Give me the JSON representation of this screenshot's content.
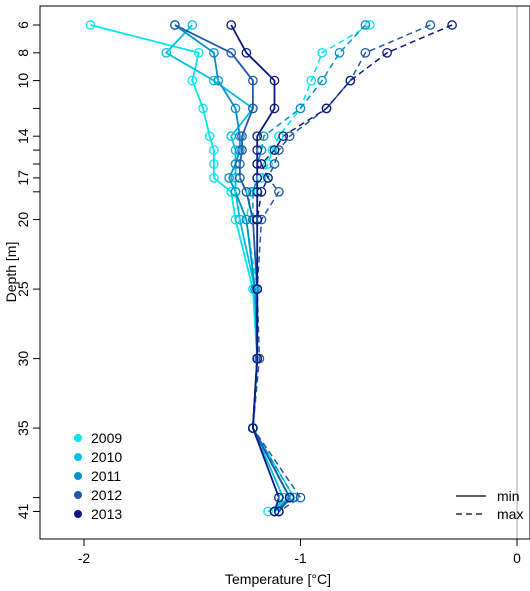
{
  "chart_data": {
    "type": "line",
    "title": "",
    "xlabel": "Temperature [°C]",
    "ylabel": "Depth [m]",
    "xlim": [
      -2.0,
      0.0
    ],
    "ylim": [
      42.5,
      5.3
    ],
    "x_ticks": [
      -2,
      -1,
      0
    ],
    "x_tick_labels": [
      "-2",
      "-1",
      "0"
    ],
    "y_ticks": [
      6,
      8,
      10,
      12,
      14,
      15,
      16,
      17,
      18,
      20,
      25,
      30,
      35,
      40,
      41
    ],
    "y_tick_labels": [
      "6",
      "8",
      "10",
      "",
      "14",
      "",
      "",
      "17",
      "",
      "20",
      "25",
      "30",
      "35",
      "",
      "41"
    ],
    "grid": false,
    "reference_line_x": 0,
    "depths": [
      6,
      8,
      10,
      12,
      14,
      15,
      16,
      17,
      18,
      20,
      25,
      30,
      35,
      40,
      41
    ],
    "series": [
      {
        "name": "2009",
        "color": "#00e5ee",
        "min": [
          -1.97,
          -1.47,
          -1.5,
          -1.45,
          -1.42,
          -1.4,
          -1.4,
          -1.4,
          -1.32,
          -1.3,
          -1.22,
          -1.2,
          -1.22,
          -1.05,
          -1.15
        ],
        "max": [
          -0.68,
          -0.9,
          -0.95,
          -1.0,
          -1.1,
          -1.13,
          -1.15,
          -1.18,
          -1.23,
          -1.25,
          -1.2,
          -1.2,
          -1.22,
          -1.03,
          -1.12
        ]
      },
      {
        "name": "2010",
        "color": "#00c0e0",
        "min": [
          -1.5,
          -1.62,
          -1.4,
          -1.22,
          -1.32,
          -1.3,
          -1.3,
          -1.3,
          -1.3,
          -1.28,
          -1.21,
          -1.2,
          -1.22,
          -1.08,
          -1.12
        ]
      },
      {
        "name": "2011",
        "color": "#0591c8",
        "min": [
          -1.58,
          -1.4,
          -1.38,
          -1.3,
          -1.28,
          -1.28,
          -1.3,
          -1.33,
          -1.3,
          -1.25,
          -1.21,
          -1.2,
          -1.22,
          -1.05,
          -1.12
        ],
        "max": [
          -0.7,
          -0.82,
          -0.9,
          -1.0,
          -1.17,
          -1.18,
          -1.2,
          -1.2,
          -1.22,
          -1.22,
          -1.2,
          -1.2,
          -1.22,
          -1.03,
          -1.12
        ]
      },
      {
        "name": "2012",
        "color": "#1f5aa8",
        "min": [
          -1.58,
          -1.32,
          -1.22,
          -1.22,
          -1.27,
          -1.27,
          -1.28,
          -1.28,
          -1.25,
          -1.22,
          -1.2,
          -1.2,
          -1.22,
          -1.05,
          -1.1
        ],
        "max": [
          -0.4,
          -0.7,
          -0.77,
          -0.88,
          -1.05,
          -1.1,
          -1.12,
          -1.15,
          -1.1,
          -1.18,
          -1.2,
          -1.19,
          -1.22,
          -1.0,
          -1.1
        ]
      },
      {
        "name": "2013",
        "color": "#0a1a82",
        "min": [
          -1.32,
          -1.25,
          -1.12,
          -1.12,
          -1.2,
          -1.2,
          -1.2,
          -1.2,
          -1.2,
          -1.2,
          -1.2,
          -1.2,
          -1.22,
          -1.1,
          -1.12
        ],
        "max": [
          -0.3,
          -0.6,
          -0.77,
          -0.88,
          -1.08,
          -1.12,
          -1.18,
          -1.15,
          -1.18,
          -1.2,
          -1.2,
          -1.2,
          -1.22,
          -1.05,
          -1.1
        ]
      }
    ],
    "legend": {
      "placement": "bottom-left",
      "entries": [
        "2009",
        "2010",
        "2011",
        "2012",
        "2013"
      ]
    },
    "line_legend": {
      "placement": "bottom-right",
      "entries": [
        {
          "label": "min",
          "style": "solid"
        },
        {
          "label": "max",
          "style": "dashed"
        }
      ]
    }
  }
}
